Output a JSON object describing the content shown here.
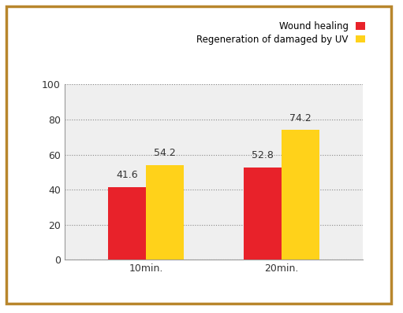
{
  "chart_data": {
    "type": "bar",
    "categories": [
      "10min.",
      "20min."
    ],
    "series": [
      {
        "name": "Wound healing",
        "color": "#e8222a",
        "values": [
          41.6,
          52.8
        ]
      },
      {
        "name": "Regeneration of damaged by UV",
        "color": "#ffd21a",
        "values": [
          54.2,
          74.2
        ]
      }
    ],
    "ylim": [
      0,
      100
    ],
    "yticks": [
      0,
      20,
      40,
      60,
      80,
      100
    ],
    "grid": true,
    "legend": "upper right",
    "data_labels": true
  }
}
